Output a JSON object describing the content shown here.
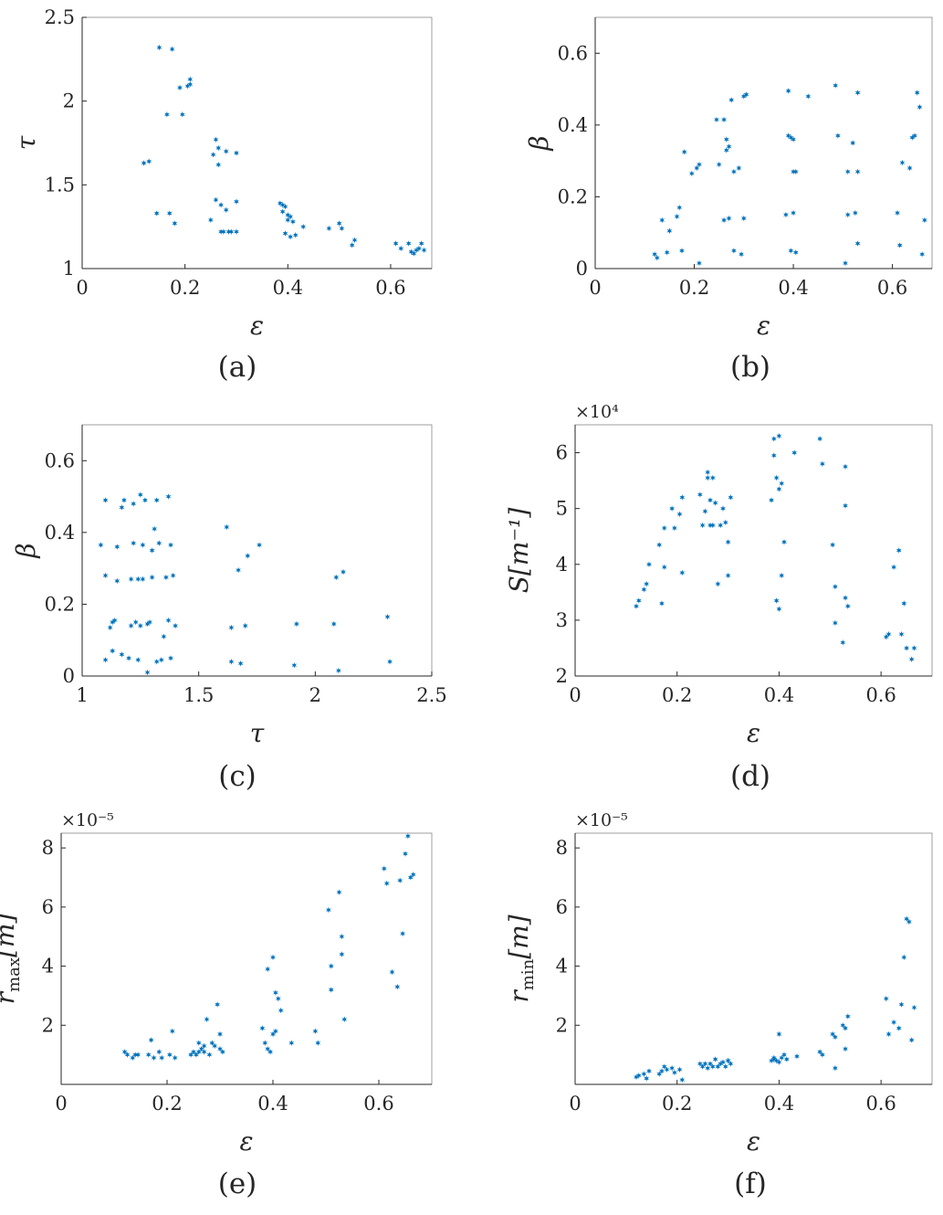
{
  "figure": {
    "marker": "asterisk",
    "marker_color": "#0072BD",
    "text_color": "#262626",
    "background": "#FFFFFF"
  },
  "chart_data": [
    {
      "type": "scatter",
      "caption": "(a)",
      "xlabel": "ε",
      "ylabel": "τ",
      "ylabel_sub": "",
      "ylabel_unit": "",
      "multiplier": "",
      "xlim": [
        0,
        0.68
      ],
      "ylim": [
        1,
        2.5
      ],
      "xticks": [
        0,
        0.2,
        0.4,
        0.6
      ],
      "xtick_labels": [
        "0",
        "0.2",
        "0.4",
        "0.6"
      ],
      "yticks": [
        1,
        1.5,
        2,
        2.5
      ],
      "ytick_labels": [
        "1",
        "1.5",
        "2",
        "2.5"
      ],
      "grid": false,
      "x": [
        0.12,
        0.13,
        0.145,
        0.15,
        0.165,
        0.17,
        0.175,
        0.18,
        0.19,
        0.195,
        0.205,
        0.21,
        0.21,
        0.25,
        0.255,
        0.26,
        0.26,
        0.265,
        0.265,
        0.27,
        0.27,
        0.275,
        0.28,
        0.28,
        0.285,
        0.29,
        0.3,
        0.3,
        0.3,
        0.385,
        0.39,
        0.39,
        0.395,
        0.395,
        0.4,
        0.4,
        0.405,
        0.405,
        0.41,
        0.415,
        0.43,
        0.48,
        0.5,
        0.505,
        0.525,
        0.53,
        0.61,
        0.62,
        0.635,
        0.64,
        0.645,
        0.65,
        0.655,
        0.66,
        0.665
      ],
      "y": [
        1.63,
        1.64,
        1.33,
        2.32,
        1.92,
        1.33,
        2.31,
        1.27,
        2.08,
        1.92,
        2.09,
        2.13,
        2.1,
        1.29,
        1.68,
        1.77,
        1.41,
        1.62,
        1.72,
        1.22,
        1.38,
        1.22,
        1.7,
        1.35,
        1.22,
        1.22,
        1.69,
        1.4,
        1.22,
        1.39,
        1.38,
        1.34,
        1.37,
        1.21,
        1.32,
        1.29,
        1.19,
        1.31,
        1.28,
        1.2,
        1.25,
        1.24,
        1.27,
        1.24,
        1.14,
        1.17,
        1.15,
        1.12,
        1.15,
        1.1,
        1.09,
        1.11,
        1.12,
        1.15,
        1.11
      ]
    },
    {
      "type": "scatter",
      "caption": "(b)",
      "xlabel": "ε",
      "ylabel": "β",
      "ylabel_sub": "",
      "ylabel_unit": "",
      "multiplier": "",
      "xlim": [
        0,
        0.68
      ],
      "ylim": [
        0,
        0.7
      ],
      "xticks": [
        0,
        0.2,
        0.4,
        0.6
      ],
      "xtick_labels": [
        "0",
        "0.2",
        "0.4",
        "0.6"
      ],
      "yticks": [
        0,
        0.2,
        0.4,
        0.6
      ],
      "ytick_labels": [
        "0",
        "0.2",
        "0.4",
        "0.6"
      ],
      "grid": false,
      "x": [
        0.12,
        0.125,
        0.135,
        0.145,
        0.15,
        0.165,
        0.17,
        0.175,
        0.18,
        0.195,
        0.205,
        0.21,
        0.21,
        0.245,
        0.25,
        0.26,
        0.26,
        0.265,
        0.265,
        0.27,
        0.27,
        0.275,
        0.28,
        0.28,
        0.29,
        0.295,
        0.3,
        0.3,
        0.305,
        0.385,
        0.39,
        0.39,
        0.395,
        0.395,
        0.4,
        0.4,
        0.4,
        0.405,
        0.405,
        0.43,
        0.485,
        0.49,
        0.505,
        0.51,
        0.51,
        0.52,
        0.525,
        0.53,
        0.53,
        0.53,
        0.61,
        0.615,
        0.62,
        0.635,
        0.64,
        0.645,
        0.65,
        0.655,
        0.66,
        0.665
      ],
      "y": [
        0.04,
        0.03,
        0.135,
        0.045,
        0.105,
        0.145,
        0.17,
        0.05,
        0.325,
        0.265,
        0.28,
        0.015,
        0.29,
        0.415,
        0.29,
        0.415,
        0.135,
        0.36,
        0.33,
        0.14,
        0.34,
        0.47,
        0.05,
        0.27,
        0.28,
        0.04,
        0.14,
        0.48,
        0.485,
        0.15,
        0.37,
        0.495,
        0.05,
        0.365,
        0.155,
        0.36,
        0.27,
        0.045,
        0.27,
        0.48,
        0.51,
        0.37,
        0.015,
        0.15,
        0.27,
        0.35,
        0.155,
        0.07,
        0.27,
        0.49,
        0.155,
        0.065,
        0.295,
        0.28,
        0.365,
        0.37,
        0.49,
        0.45,
        0.04,
        0.135
      ]
    },
    {
      "type": "scatter",
      "caption": "(c)",
      "xlabel": "τ",
      "ylabel": "β",
      "ylabel_sub": "",
      "ylabel_unit": "",
      "multiplier": "",
      "xlim": [
        1,
        2.5
      ],
      "ylim": [
        0,
        0.7
      ],
      "xticks": [
        1,
        1.5,
        2,
        2.5
      ],
      "xtick_labels": [
        "1",
        "1.5",
        "2",
        "2.5"
      ],
      "yticks": [
        0,
        0.2,
        0.4,
        0.6
      ],
      "ytick_labels": [
        "0",
        "0.2",
        "0.4",
        "0.6"
      ],
      "grid": false,
      "x": [
        1.08,
        1.1,
        1.1,
        1.1,
        1.12,
        1.13,
        1.13,
        1.14,
        1.15,
        1.15,
        1.17,
        1.17,
        1.18,
        1.2,
        1.21,
        1.21,
        1.22,
        1.22,
        1.23,
        1.24,
        1.24,
        1.25,
        1.25,
        1.26,
        1.26,
        1.27,
        1.28,
        1.28,
        1.29,
        1.3,
        1.3,
        1.31,
        1.32,
        1.32,
        1.33,
        1.34,
        1.35,
        1.36,
        1.37,
        1.37,
        1.38,
        1.38,
        1.39,
        1.4,
        1.62,
        1.64,
        1.64,
        1.67,
        1.68,
        1.7,
        1.71,
        1.76,
        1.91,
        1.92,
        2.08,
        2.09,
        2.1,
        2.12,
        2.31,
        2.32
      ],
      "y": [
        0.365,
        0.49,
        0.045,
        0.28,
        0.135,
        0.15,
        0.07,
        0.155,
        0.36,
        0.265,
        0.47,
        0.06,
        0.49,
        0.05,
        0.27,
        0.14,
        0.37,
        0.48,
        0.15,
        0.27,
        0.045,
        0.14,
        0.505,
        0.27,
        0.365,
        0.49,
        0.01,
        0.145,
        0.15,
        0.35,
        0.275,
        0.41,
        0.04,
        0.49,
        0.37,
        0.045,
        0.11,
        0.275,
        0.5,
        0.155,
        0.365,
        0.05,
        0.28,
        0.14,
        0.415,
        0.04,
        0.135,
        0.295,
        0.035,
        0.14,
        0.335,
        0.365,
        0.03,
        0.145,
        0.145,
        0.275,
        0.015,
        0.29,
        0.165,
        0.04
      ]
    },
    {
      "type": "scatter",
      "caption": "(d)",
      "xlabel": "ε",
      "ylabel": "S",
      "ylabel_sub": "",
      "ylabel_unit": "[m⁻¹]",
      "multiplier": "×10⁴",
      "xlim": [
        0,
        0.7
      ],
      "ylim": [
        20000,
        65000
      ],
      "xticks": [
        0,
        0.2,
        0.4,
        0.6
      ],
      "xtick_labels": [
        "0",
        "0.2",
        "0.4",
        "0.6"
      ],
      "yticks": [
        20000,
        30000,
        40000,
        50000,
        60000
      ],
      "ytick_labels": [
        "2",
        "3",
        "4",
        "5",
        "6"
      ],
      "grid": false,
      "x": [
        0.12,
        0.125,
        0.135,
        0.14,
        0.145,
        0.165,
        0.17,
        0.175,
        0.175,
        0.19,
        0.195,
        0.205,
        0.21,
        0.21,
        0.245,
        0.25,
        0.255,
        0.26,
        0.26,
        0.265,
        0.265,
        0.27,
        0.27,
        0.275,
        0.28,
        0.285,
        0.29,
        0.295,
        0.3,
        0.3,
        0.305,
        0.385,
        0.39,
        0.39,
        0.395,
        0.395,
        0.4,
        0.4,
        0.4,
        0.405,
        0.405,
        0.41,
        0.43,
        0.48,
        0.485,
        0.505,
        0.51,
        0.51,
        0.525,
        0.53,
        0.53,
        0.53,
        0.535,
        0.61,
        0.615,
        0.625,
        0.635,
        0.64,
        0.645,
        0.65,
        0.66,
        0.665
      ],
      "y": [
        32500,
        33500,
        35500,
        36500,
        40000,
        43500,
        33000,
        46500,
        39500,
        50000,
        46500,
        49000,
        52000,
        38500,
        52500,
        47000,
        49500,
        55500,
        56500,
        47000,
        51500,
        55500,
        47000,
        51000,
        36500,
        47000,
        50000,
        47500,
        38000,
        44000,
        52000,
        51500,
        62500,
        59500,
        33500,
        55500,
        63000,
        53500,
        32000,
        54500,
        38000,
        44000,
        60000,
        62500,
        58000,
        43500,
        29500,
        36000,
        26000,
        50500,
        57500,
        34000,
        32500,
        27000,
        27500,
        39500,
        42500,
        27500,
        33000,
        25000,
        23000,
        25000
      ]
    },
    {
      "type": "scatter",
      "caption": "(e)",
      "xlabel": "ε",
      "ylabel": "r",
      "ylabel_sub": "max",
      "ylabel_unit": "[m]",
      "multiplier": "×10⁻⁵",
      "xlim": [
        0,
        0.7
      ],
      "ylim": [
        0,
        8.5e-05
      ],
      "xticks": [
        0,
        0.2,
        0.4,
        0.6
      ],
      "xtick_labels": [
        "0",
        "0.2",
        "0.4",
        "0.6"
      ],
      "yticks": [
        2e-05,
        4e-05,
        6e-05,
        8e-05
      ],
      "ytick_labels": [
        "2",
        "4",
        "6",
        "8"
      ],
      "grid": false,
      "x": [
        0.12,
        0.125,
        0.135,
        0.14,
        0.145,
        0.165,
        0.17,
        0.175,
        0.185,
        0.19,
        0.205,
        0.21,
        0.215,
        0.245,
        0.25,
        0.255,
        0.26,
        0.26,
        0.265,
        0.27,
        0.27,
        0.275,
        0.28,
        0.285,
        0.29,
        0.295,
        0.3,
        0.3,
        0.305,
        0.38,
        0.385,
        0.39,
        0.39,
        0.395,
        0.4,
        0.4,
        0.405,
        0.405,
        0.41,
        0.415,
        0.435,
        0.48,
        0.485,
        0.505,
        0.51,
        0.51,
        0.525,
        0.53,
        0.53,
        0.535,
        0.61,
        0.615,
        0.625,
        0.635,
        0.64,
        0.645,
        0.65,
        0.655,
        0.66,
        0.665
      ],
      "y": [
        1.1e-05,
        1e-05,
        9e-06,
        1e-05,
        1e-05,
        1e-05,
        1.5e-05,
        9e-06,
        1.1e-05,
        9e-06,
        1e-05,
        1.8e-05,
        9e-06,
        1e-05,
        1.1e-05,
        1e-05,
        1.4e-05,
        1.1e-05,
        1.2e-05,
        1.1e-05,
        1.3e-05,
        2.2e-05,
        1e-05,
        1.4e-05,
        1.3e-05,
        2.7e-05,
        1.2e-05,
        1.7e-05,
        1.1e-05,
        1.9e-05,
        1.4e-05,
        3.9e-05,
        1.2e-05,
        1.1e-05,
        4.3e-05,
        1.7e-05,
        3.1e-05,
        1.8e-05,
        2.9e-05,
        2.5e-05,
        1.4e-05,
        1.8e-05,
        1.4e-05,
        5.9e-05,
        3.2e-05,
        4e-05,
        6.5e-05,
        5e-05,
        4.4e-05,
        2.2e-05,
        7.3e-05,
        6.8e-05,
        3.8e-05,
        3.3e-05,
        6.9e-05,
        5.1e-05,
        7.8e-05,
        8.4e-05,
        7e-05,
        7.1e-05
      ]
    },
    {
      "type": "scatter",
      "caption": "(f)",
      "xlabel": "ε",
      "ylabel": "r",
      "ylabel_sub": "min",
      "ylabel_unit": "[m]",
      "multiplier": "×10⁻⁵",
      "xlim": [
        0,
        0.7
      ],
      "ylim": [
        0,
        8.5e-05
      ],
      "xticks": [
        0,
        0.2,
        0.4,
        0.6
      ],
      "xtick_labels": [
        "0",
        "0.2",
        "0.4",
        "0.6"
      ],
      "yticks": [
        2e-05,
        4e-05,
        6e-05,
        8e-05
      ],
      "ytick_labels": [
        "2",
        "4",
        "6",
        "8"
      ],
      "grid": false,
      "x": [
        0.12,
        0.125,
        0.135,
        0.14,
        0.145,
        0.165,
        0.17,
        0.175,
        0.18,
        0.19,
        0.195,
        0.205,
        0.21,
        0.245,
        0.25,
        0.255,
        0.26,
        0.265,
        0.27,
        0.275,
        0.28,
        0.285,
        0.29,
        0.295,
        0.3,
        0.3,
        0.305,
        0.385,
        0.39,
        0.39,
        0.395,
        0.4,
        0.4,
        0.405,
        0.41,
        0.415,
        0.435,
        0.48,
        0.485,
        0.505,
        0.51,
        0.51,
        0.525,
        0.53,
        0.53,
        0.535,
        0.61,
        0.615,
        0.625,
        0.635,
        0.64,
        0.645,
        0.65,
        0.655,
        0.66,
        0.665
      ],
      "y": [
        2.5e-06,
        3e-06,
        3.5e-06,
        2e-06,
        4.5e-06,
        3.5e-06,
        4.5e-06,
        6e-06,
        5e-06,
        5.5e-06,
        4e-06,
        5e-06,
        1.5e-06,
        7e-06,
        6e-06,
        7e-06,
        5.5e-06,
        7e-06,
        6e-06,
        8.5e-06,
        6e-06,
        7e-06,
        7.5e-06,
        6e-06,
        8e-06,
        8e-06,
        7e-06,
        8e-06,
        8.5e-06,
        9e-06,
        8e-06,
        1.7e-05,
        7.5e-06,
        9e-06,
        1e-05,
        8.5e-06,
        9.5e-06,
        1.1e-05,
        1e-05,
        1.7e-05,
        5.5e-06,
        1.6e-05,
        2e-05,
        1.9e-05,
        1.2e-05,
        2.3e-05,
        2.9e-05,
        1.7e-05,
        2.1e-05,
        1.9e-05,
        2.7e-05,
        4.3e-05,
        5.6e-05,
        5.5e-05,
        1.5e-05,
        2.6e-05
      ]
    }
  ]
}
